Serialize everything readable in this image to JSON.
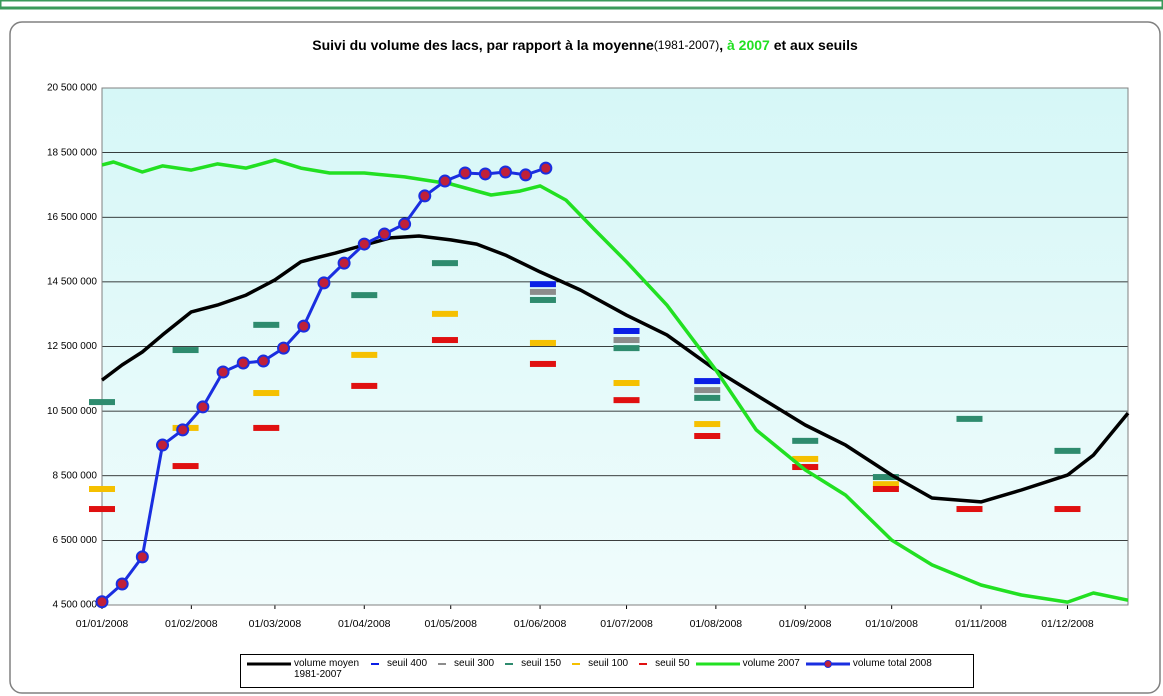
{
  "chart_data": {
    "type": "line",
    "title_parts": [
      "Suivi du volume des lacs, par rapport à la moyenne",
      "(1981-2007)",
      ", ",
      "à 2007",
      " et aux seuils"
    ],
    "xlim": [
      "2008-01-01",
      "2008-12-22"
    ],
    "xticks": [
      {
        "value": "2008-01-01",
        "label": "01/01/2008"
      },
      {
        "value": "2008-02-01",
        "label": "01/02/2008"
      },
      {
        "value": "2008-03-01",
        "label": "01/03/2008"
      },
      {
        "value": "2008-04-01",
        "label": "01/04/2008"
      },
      {
        "value": "2008-05-01",
        "label": "01/05/2008"
      },
      {
        "value": "2008-06-01",
        "label": "01/06/2008"
      },
      {
        "value": "2008-07-01",
        "label": "01/07/2008"
      },
      {
        "value": "2008-08-01",
        "label": "01/08/2008"
      },
      {
        "value": "2008-09-01",
        "label": "01/09/2008"
      },
      {
        "value": "2008-10-01",
        "label": "01/10/2008"
      },
      {
        "value": "2008-11-01",
        "label": "01/11/2008"
      },
      {
        "value": "2008-12-01",
        "label": "01/12/2008"
      }
    ],
    "ylim": [
      4500000,
      20500000
    ],
    "yticks": [
      {
        "value": 4500000,
        "label": "4 500 000"
      },
      {
        "value": 6500000,
        "label": "6 500 000"
      },
      {
        "value": 8500000,
        "label": "8 500 000"
      },
      {
        "value": 10500000,
        "label": "10 500 000"
      },
      {
        "value": 12500000,
        "label": "12 500 000"
      },
      {
        "value": 14500000,
        "label": "14 500 000"
      },
      {
        "value": 16500000,
        "label": "16 500 000"
      },
      {
        "value": 18500000,
        "label": "18 500 000"
      },
      {
        "value": 20500000,
        "label": "20 500 000"
      }
    ],
    "grid": true,
    "series": [
      {
        "name": "volume moyen 1981-2007",
        "color": "#000000",
        "style": "line",
        "x": [
          "2008-01-01",
          "2008-01-08",
          "2008-01-15",
          "2008-01-22",
          "2008-02-01",
          "2008-02-10",
          "2008-02-20",
          "2008-03-01",
          "2008-03-10",
          "2008-03-15",
          "2008-03-22",
          "2008-04-01",
          "2008-04-10",
          "2008-04-20",
          "2008-05-01",
          "2008-05-10",
          "2008-05-20",
          "2008-06-01",
          "2008-06-15",
          "2008-07-01",
          "2008-07-15",
          "2008-08-01",
          "2008-08-15",
          "2008-09-01",
          "2008-09-15",
          "2008-10-01",
          "2008-10-15",
          "2008-11-01",
          "2008-11-15",
          "2008-12-01",
          "2008-12-10",
          "2008-12-22"
        ],
        "values": [
          11460000,
          11930000,
          12330000,
          12860000,
          13570000,
          13780000,
          14090000,
          14560000,
          15120000,
          15240000,
          15390000,
          15640000,
          15860000,
          15920000,
          15800000,
          15670000,
          15330000,
          14810000,
          14250000,
          13470000,
          12860000,
          11770000,
          11000000,
          10070000,
          9450000,
          8520000,
          7810000,
          7690000,
          8060000,
          8520000,
          9140000,
          10440000
        ]
      },
      {
        "name": "seuil 400",
        "color": "#0a1ee6",
        "style": "dash",
        "x": [
          "2008-06-02",
          "2008-07-01",
          "2008-07-29"
        ],
        "values": [
          14430000,
          12980000,
          11430000
        ]
      },
      {
        "name": "seuil 300",
        "color": "#8c8c8c",
        "style": "dash",
        "x": [
          "2008-06-02",
          "2008-07-01",
          "2008-07-29"
        ],
        "values": [
          14190000,
          12700000,
          11150000
        ]
      },
      {
        "name": "seuil 150",
        "color": "#2e8b6e",
        "style": "dash",
        "x": [
          "2008-01-01",
          "2008-01-30",
          "2008-02-27",
          "2008-04-01",
          "2008-04-29",
          "2008-06-02",
          "2008-07-01",
          "2008-07-29",
          "2008-09-01",
          "2008-09-29",
          "2008-10-28",
          "2008-12-01"
        ],
        "values": [
          10780000,
          12390000,
          13170000,
          14090000,
          15080000,
          13940000,
          12450000,
          10910000,
          9580000,
          8460000,
          10260000,
          9270000
        ]
      },
      {
        "name": "seuil 100",
        "color": "#f5c000",
        "style": "dash",
        "x": [
          "2008-01-01",
          "2008-01-30",
          "2008-02-27",
          "2008-04-01",
          "2008-04-29",
          "2008-06-02",
          "2008-07-01",
          "2008-07-29",
          "2008-09-01",
          "2008-09-29"
        ],
        "values": [
          8090000,
          9980000,
          11060000,
          12240000,
          13510000,
          12610000,
          11370000,
          10100000,
          9020000,
          8240000
        ]
      },
      {
        "name": "seuil 50",
        "color": "#e01010",
        "style": "dash",
        "x": [
          "2008-01-01",
          "2008-01-30",
          "2008-02-27",
          "2008-04-01",
          "2008-04-29",
          "2008-06-02",
          "2008-07-01",
          "2008-07-29",
          "2008-09-01",
          "2008-09-29",
          "2008-10-28",
          "2008-12-01"
        ],
        "values": [
          7470000,
          8800000,
          9980000,
          11280000,
          12700000,
          11960000,
          10840000,
          9730000,
          8770000,
          8090000,
          7470000,
          7470000
        ]
      },
      {
        "name": "volume 2007",
        "color": "#22e022",
        "style": "line",
        "x": [
          "2008-01-01",
          "2008-01-05",
          "2008-01-15",
          "2008-01-22",
          "2008-02-01",
          "2008-02-10",
          "2008-02-20",
          "2008-03-01",
          "2008-03-10",
          "2008-03-20",
          "2008-04-01",
          "2008-04-15",
          "2008-05-01",
          "2008-05-15",
          "2008-05-25",
          "2008-06-01",
          "2008-06-10",
          "2008-06-20",
          "2008-07-01",
          "2008-07-15",
          "2008-08-01",
          "2008-08-15",
          "2008-09-01",
          "2008-09-15",
          "2008-10-01",
          "2008-10-15",
          "2008-11-01",
          "2008-11-15",
          "2008-12-01",
          "2008-12-10",
          "2008-12-22"
        ],
        "values": [
          18120000,
          18210000,
          17900000,
          18090000,
          17960000,
          18150000,
          18020000,
          18270000,
          18020000,
          17870000,
          17870000,
          17750000,
          17530000,
          17190000,
          17310000,
          17470000,
          17030000,
          16110000,
          15120000,
          13780000,
          11770000,
          9920000,
          8680000,
          7900000,
          6510000,
          5740000,
          5120000,
          4810000,
          4590000,
          4870000,
          4650000
        ]
      },
      {
        "name": "volume total 2008",
        "color": "#1a2ee0",
        "marker_color": "#c0203a",
        "style": "line-markers",
        "x": [
          "2008-01-01",
          "2008-01-08",
          "2008-01-15",
          "2008-01-22",
          "2008-01-29",
          "2008-02-05",
          "2008-02-12",
          "2008-02-19",
          "2008-02-26",
          "2008-03-04",
          "2008-03-11",
          "2008-03-18",
          "2008-03-25",
          "2008-04-01",
          "2008-04-08",
          "2008-04-15",
          "2008-04-22",
          "2008-04-29",
          "2008-05-06",
          "2008-05-13",
          "2008-05-20",
          "2008-05-27",
          "2008-06-03"
        ],
        "values": [
          4600000,
          5150000,
          5990000,
          9450000,
          9920000,
          10630000,
          11710000,
          11990000,
          12050000,
          12450000,
          13130000,
          14470000,
          15080000,
          15670000,
          15980000,
          16290000,
          17160000,
          17620000,
          17870000,
          17840000,
          17900000,
          17810000,
          18020000
        ]
      }
    ]
  }
}
